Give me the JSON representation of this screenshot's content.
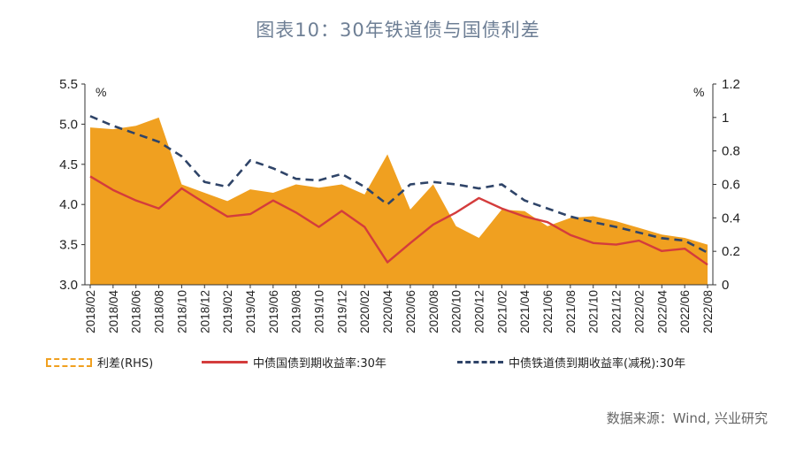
{
  "title": "图表10：30年铁道债与国债利差",
  "source": "数据来源：Wind, 兴业研究",
  "chart_data": {
    "type": "line",
    "x": [
      "2018/02",
      "2018/04",
      "2018/06",
      "2018/08",
      "2018/10",
      "2018/12",
      "2019/02",
      "2019/04",
      "2019/06",
      "2019/08",
      "2019/10",
      "2019/12",
      "2020/02",
      "2020/04",
      "2020/06",
      "2020/08",
      "2020/10",
      "2020/12",
      "2021/02",
      "2021/04",
      "2021/06",
      "2021/08",
      "2021/10",
      "2021/12",
      "2022/02",
      "2022/04",
      "2022/06",
      "2022/08"
    ],
    "left_axis": {
      "unit": "%",
      "ylim": [
        3.0,
        5.5
      ],
      "ticks": [
        "3.0",
        "3.5",
        "4.0",
        "4.5",
        "5.0",
        "5.5"
      ]
    },
    "right_axis": {
      "unit": "%",
      "ylim": [
        0,
        1.2
      ],
      "ticks": [
        "0",
        "0.2",
        "0.4",
        "0.6",
        "0.8",
        "1",
        "1.2"
      ]
    },
    "series": [
      {
        "name": "利差(RHS)",
        "type": "area",
        "axis": "right",
        "color": "#f0a020",
        "values": [
          0.94,
          0.93,
          0.95,
          1.0,
          0.6,
          0.55,
          0.5,
          0.57,
          0.55,
          0.6,
          0.58,
          0.6,
          0.54,
          0.78,
          0.45,
          0.6,
          0.35,
          0.28,
          0.45,
          0.44,
          0.35,
          0.4,
          0.41,
          0.38,
          0.34,
          0.3,
          0.28,
          0.24
        ]
      },
      {
        "name": "中债国债到期收益率:30年",
        "type": "line",
        "axis": "left",
        "color": "#d43c3c",
        "values": [
          4.35,
          4.18,
          4.05,
          3.95,
          4.2,
          4.02,
          3.85,
          3.88,
          4.05,
          3.9,
          3.72,
          3.92,
          3.72,
          3.28,
          3.52,
          3.75,
          3.9,
          4.08,
          3.95,
          3.85,
          3.78,
          3.62,
          3.52,
          3.5,
          3.55,
          3.42,
          3.45,
          3.25
        ]
      },
      {
        "name": "中债铁道债到期收益率(减税):30年",
        "type": "line",
        "axis": "left",
        "color": "#2f4468",
        "values": [
          5.1,
          4.98,
          4.88,
          4.78,
          4.6,
          4.28,
          4.22,
          4.55,
          4.45,
          4.32,
          4.3,
          4.38,
          4.22,
          4.0,
          4.25,
          4.28,
          4.25,
          4.2,
          4.25,
          4.05,
          3.95,
          3.85,
          3.78,
          3.72,
          3.65,
          3.58,
          3.55,
          3.4
        ]
      }
    ]
  }
}
